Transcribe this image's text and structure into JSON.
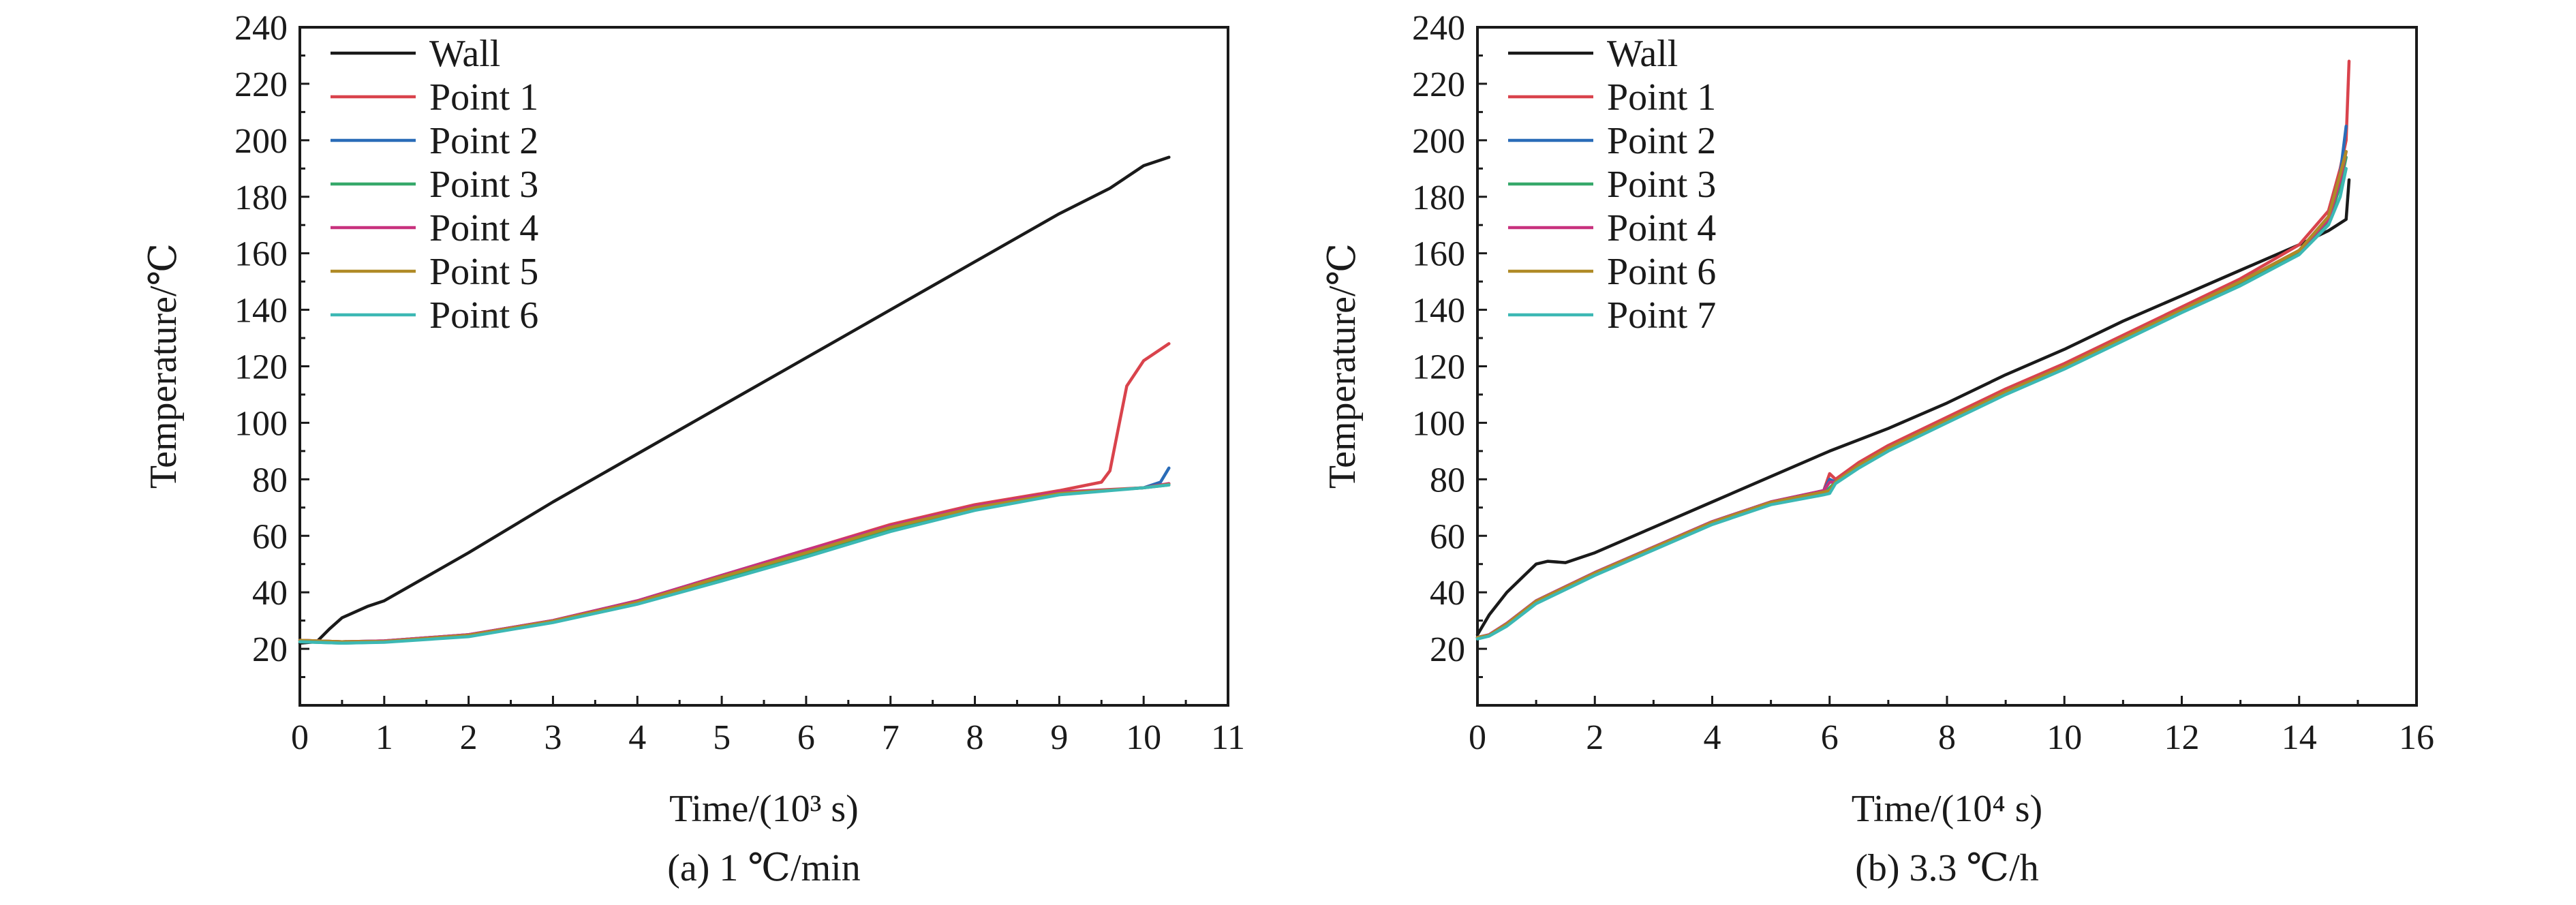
{
  "colors": {
    "wall": "#1a1a1a",
    "red": "#d9434c",
    "blue": "#2a6cb8",
    "green": "#35a86a",
    "magenta": "#c8327e",
    "olive": "#b08a26",
    "teal": "#3cb8b4"
  },
  "chart_data": [
    {
      "type": "line",
      "title": "(a) 1 ℃/min",
      "xlabel": "Time/(10³ s)",
      "ylabel": "Temperature/℃",
      "xlim": [
        0,
        11
      ],
      "ylim": [
        0,
        240
      ],
      "xticks": [
        0,
        1,
        2,
        3,
        4,
        5,
        6,
        7,
        8,
        9,
        10,
        11
      ],
      "yticks": [
        20,
        40,
        60,
        80,
        100,
        120,
        140,
        160,
        180,
        200,
        220,
        240
      ],
      "legend": "top-left",
      "grid": false,
      "series": [
        {
          "name": "Wall",
          "color": "#1a1a1a",
          "x": [
            0,
            0.2,
            0.35,
            0.5,
            0.8,
            1,
            2,
            3,
            4,
            5,
            6,
            7,
            8,
            9,
            9.6,
            10,
            10.3
          ],
          "y": [
            22,
            22.5,
            27,
            31,
            35,
            37,
            54,
            72,
            89,
            106,
            123,
            140,
            157,
            174,
            183,
            191,
            194
          ]
        },
        {
          "name": "Point 1",
          "color": "#d9434c",
          "x": [
            0,
            0.5,
            1,
            2,
            3,
            4,
            5,
            6,
            7,
            8,
            9,
            9.5,
            9.6,
            9.7,
            9.8,
            10,
            10.3
          ],
          "y": [
            23,
            22.5,
            22.8,
            25,
            30,
            37,
            46,
            55,
            64,
            71,
            76,
            79,
            83,
            98,
            113,
            122,
            128
          ]
        },
        {
          "name": "Point 2",
          "color": "#2a6cb8",
          "x": [
            0,
            0.5,
            1,
            2,
            3,
            4,
            5,
            6,
            7,
            8,
            9,
            10,
            10.2,
            10.3
          ],
          "y": [
            23,
            22.5,
            22.8,
            25,
            30,
            37,
            46,
            55,
            63,
            70,
            75,
            77,
            79,
            84
          ]
        },
        {
          "name": "Point 3",
          "color": "#35a86a",
          "x": [
            0,
            0.5,
            1,
            2,
            3,
            4,
            5,
            6,
            7,
            8,
            9,
            10,
            10.3
          ],
          "y": [
            22.5,
            22,
            22.4,
            24.5,
            29.5,
            36,
            44.5,
            53,
            62,
            69.5,
            75,
            77,
            78
          ]
        },
        {
          "name": "Point 4",
          "color": "#c8327e",
          "x": [
            0,
            0.5,
            1,
            2,
            3,
            4,
            5,
            6,
            7,
            8,
            9,
            10,
            10.3
          ],
          "y": [
            23,
            22.5,
            22.8,
            25,
            30,
            37,
            46,
            55,
            63.5,
            70.5,
            75.5,
            77,
            78.5
          ]
        },
        {
          "name": "Point 5",
          "color": "#b08a26",
          "x": [
            0,
            0.5,
            1,
            2,
            3,
            4,
            5,
            6,
            7,
            8,
            9,
            10,
            10.3
          ],
          "y": [
            23,
            22.5,
            22.6,
            24.8,
            29.8,
            36.5,
            45.5,
            54,
            63,
            70,
            75,
            77,
            78.2
          ]
        },
        {
          "name": "Point 6",
          "color": "#3cb8b4",
          "x": [
            0,
            0.5,
            1,
            2,
            3,
            4,
            5,
            6,
            7,
            8,
            9,
            10,
            10.3
          ],
          "y": [
            22.5,
            22,
            22.3,
            24.3,
            29.3,
            35.8,
            44,
            52.5,
            61.5,
            69,
            74.5,
            77,
            78
          ]
        }
      ]
    },
    {
      "type": "line",
      "title": "(b) 3.3 ℃/h",
      "xlabel": "Time/(10⁴ s)",
      "ylabel": "Temperature/℃",
      "xlim": [
        0,
        16
      ],
      "ylim": [
        0,
        240
      ],
      "xticks": [
        0,
        2,
        4,
        6,
        8,
        10,
        12,
        14,
        16
      ],
      "yticks": [
        20,
        40,
        60,
        80,
        100,
        120,
        140,
        160,
        180,
        200,
        220,
        240
      ],
      "legend": "top-left",
      "grid": false,
      "series": [
        {
          "name": "Wall",
          "color": "#1a1a1a",
          "x": [
            0,
            0.2,
            0.5,
            0.8,
            1.0,
            1.2,
            1.5,
            2,
            3,
            4,
            5,
            6,
            7,
            8,
            9,
            10,
            11,
            12,
            13,
            14,
            14.5,
            14.8,
            14.85
          ],
          "y": [
            25,
            32,
            40,
            46,
            50,
            51,
            50.5,
            54,
            63,
            72,
            81,
            90,
            98,
            107,
            117,
            126,
            136,
            145,
            154,
            163,
            168,
            172,
            186
          ]
        },
        {
          "name": "Point 1",
          "color": "#d9434c",
          "x": [
            0,
            0.2,
            0.5,
            1,
            2,
            3,
            4,
            5,
            5.9,
            6,
            6.1,
            6.5,
            7,
            8,
            9,
            10,
            11,
            12,
            13,
            14,
            14.5,
            14.7,
            14.8,
            14.85
          ],
          "y": [
            24,
            25,
            29,
            37,
            47,
            56,
            65,
            72,
            76,
            82,
            80,
            86,
            92,
            102,
            112,
            121,
            131,
            141,
            151,
            163,
            175,
            190,
            200,
            228
          ]
        },
        {
          "name": "Point 2",
          "color": "#2a6cb8",
          "x": [
            0,
            0.2,
            0.5,
            1,
            2,
            3,
            4,
            5,
            5.9,
            6,
            6.1,
            6.5,
            7,
            8,
            9,
            10,
            11,
            12,
            13,
            14,
            14.5,
            14.7,
            14.8
          ],
          "y": [
            24,
            25,
            29,
            37,
            47,
            56,
            65,
            72,
            76,
            80,
            79,
            85,
            91,
            101,
            111,
            120,
            130,
            140,
            150,
            161,
            173,
            188,
            205
          ]
        },
        {
          "name": "Point 3",
          "color": "#35a86a",
          "x": [
            0,
            0.2,
            0.5,
            1,
            2,
            3,
            4,
            5,
            5.9,
            6,
            6.1,
            6.5,
            7,
            8,
            9,
            10,
            11,
            12,
            13,
            14,
            14.5,
            14.7,
            14.8
          ],
          "y": [
            24,
            24.8,
            28.5,
            36.5,
            46.5,
            55.5,
            64.5,
            71.5,
            75,
            77,
            79,
            84.5,
            90.5,
            100.5,
            110.5,
            119.5,
            129.5,
            139.5,
            149,
            160,
            171,
            184,
            194
          ]
        },
        {
          "name": "Point 4",
          "color": "#c8327e",
          "x": [
            0,
            0.2,
            0.5,
            1,
            2,
            3,
            4,
            5,
            5.9,
            6,
            6.1,
            6.5,
            7,
            8,
            9,
            10,
            11,
            12,
            13,
            14,
            14.5,
            14.7,
            14.8
          ],
          "y": [
            24,
            25,
            29,
            37,
            47,
            56,
            65,
            72,
            76,
            79,
            79,
            85,
            91,
            101,
            111,
            120,
            130,
            140,
            150,
            161,
            172,
            186,
            196
          ]
        },
        {
          "name": "Point 6",
          "color": "#b08a26",
          "x": [
            0,
            0.2,
            0.5,
            1,
            2,
            3,
            4,
            5,
            5.9,
            6,
            6.1,
            6.5,
            7,
            8,
            9,
            10,
            11,
            12,
            13,
            14,
            14.5,
            14.7,
            14.8
          ],
          "y": [
            24,
            24.8,
            28.8,
            36.8,
            46.8,
            55.8,
            64.8,
            71.8,
            75.5,
            76,
            79,
            85,
            91,
            101,
            111,
            120,
            130,
            140,
            150,
            161,
            173,
            188,
            196
          ]
        },
        {
          "name": "Point 7",
          "color": "#3cb8b4",
          "x": [
            0,
            0.2,
            0.5,
            1,
            2,
            3,
            4,
            5,
            5.9,
            6,
            6.1,
            6.5,
            7,
            8,
            9,
            10,
            11,
            12,
            13,
            14,
            14.5,
            14.7,
            14.8
          ],
          "y": [
            23.5,
            24.5,
            28,
            36,
            46,
            55,
            64,
            71,
            74.5,
            75,
            78.5,
            84,
            90,
            100,
            110,
            119,
            129,
            139,
            148.5,
            159.5,
            170,
            180,
            190
          ]
        }
      ]
    }
  ]
}
